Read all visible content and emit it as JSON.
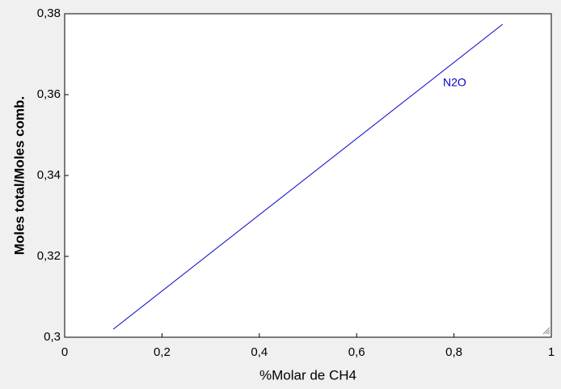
{
  "chart_data": {
    "type": "line",
    "xlabel": "%Molar de CH4",
    "ylabel": "Moles total/Moles comb.",
    "x": [
      0.1,
      0.9
    ],
    "series": [
      {
        "name": "N2O",
        "color": "#0000cc",
        "values": [
          0.302,
          0.3774
        ]
      }
    ],
    "xlim": [
      0,
      1
    ],
    "xticks": [
      0,
      {
        "value": 0.2,
        "label": "0,2"
      },
      {
        "value": 0.4,
        "label": "0,4"
      },
      {
        "value": 0.6,
        "label": "0,6"
      },
      {
        "value": 0.8,
        "label": "0,8"
      },
      1
    ],
    "ylim": [
      0.3,
      0.38
    ],
    "yticks": [
      {
        "value": 0.3,
        "label": "0,3"
      },
      {
        "value": 0.32,
        "label": "0,32"
      },
      {
        "value": 0.34,
        "label": "0,34"
      },
      {
        "value": 0.36,
        "label": "0,36"
      },
      {
        "value": 0.38,
        "label": "0,38"
      }
    ]
  }
}
